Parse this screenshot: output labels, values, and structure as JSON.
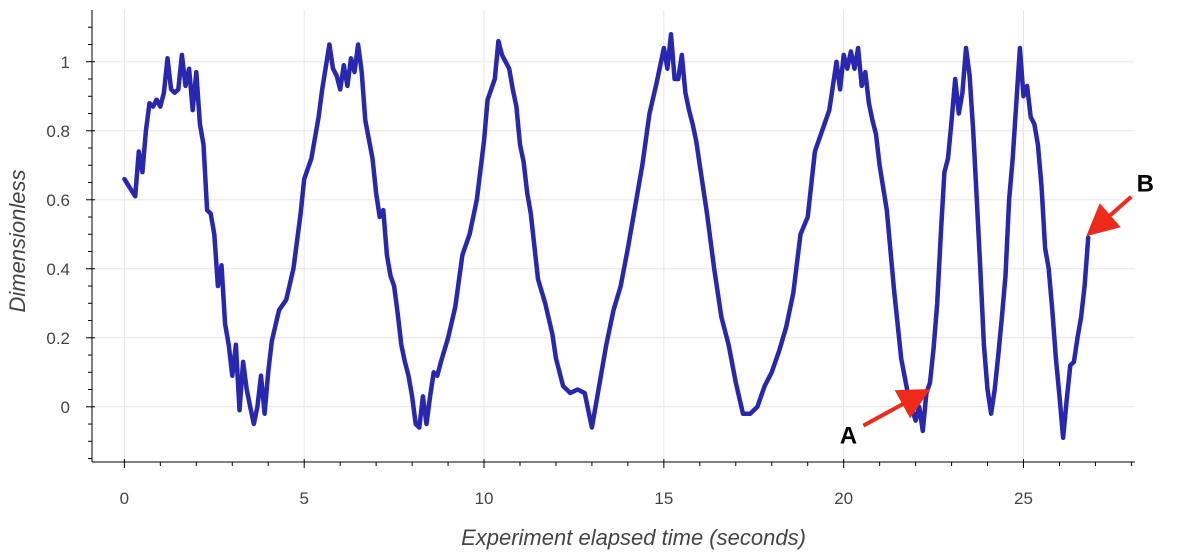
{
  "chart_data": {
    "type": "line",
    "title": "",
    "xlabel": "Experiment elapsed time (seconds)",
    "ylabel": "Dimensionless",
    "xlim": [
      -0.9,
      28.1
    ],
    "ylim": [
      -0.16,
      1.15
    ],
    "x_ticks": [
      0,
      5,
      10,
      15,
      20,
      25
    ],
    "x_tick_labels": [
      "0",
      "5",
      "10",
      "15",
      "20",
      "25"
    ],
    "y_ticks": [
      0,
      0.2,
      0.4,
      0.6,
      0.8,
      1
    ],
    "y_tick_labels": [
      "0",
      "0.2",
      "0.4",
      "0.6",
      "0.8",
      "1"
    ],
    "grid": true,
    "legend": "none",
    "colors": {
      "line": "#2727b0",
      "arrow": "#ee2a1b",
      "grid": "#e6e6e6",
      "axis": "#000000"
    },
    "series": [
      {
        "x": [
          0,
          0.3,
          0.4,
          0.5,
          0.6,
          0.7,
          0.8,
          0.9,
          1.0,
          1.1,
          1.2,
          1.3,
          1.4,
          1.5,
          1.6,
          1.7,
          1.8,
          1.9,
          2.0,
          2.1,
          2.2,
          2.3,
          2.4,
          2.5,
          2.6,
          2.7,
          2.8,
          2.9,
          3.0,
          3.1,
          3.2,
          3.3,
          3.4,
          3.5,
          3.6,
          3.7,
          3.8,
          3.9,
          4.0,
          4.1,
          4.3,
          4.5,
          4.7,
          4.9,
          5.0,
          5.2,
          5.4,
          5.5,
          5.7,
          5.8,
          5.9,
          6.0,
          6.1,
          6.2,
          6.3,
          6.4,
          6.5,
          6.6,
          6.7,
          6.9,
          7.0,
          7.1,
          7.2,
          7.3,
          7.4,
          7.5,
          7.6,
          7.7,
          7.8,
          7.9,
          8.0,
          8.1,
          8.2,
          8.3,
          8.4,
          8.5,
          8.6,
          8.7,
          8.8,
          9.0,
          9.2,
          9.4,
          9.6,
          9.8,
          10.0,
          10.1,
          10.2,
          10.3,
          10.4,
          10.5,
          10.6,
          10.7,
          10.8,
          10.9,
          11.0,
          11.1,
          11.2,
          11.3,
          11.5,
          11.7,
          11.9,
          12.0,
          12.2,
          12.4,
          12.6,
          12.8,
          13.0,
          13.2,
          13.4,
          13.6,
          13.8,
          14.0,
          14.2,
          14.4,
          14.6,
          14.8,
          15.0,
          15.1,
          15.2,
          15.3,
          15.4,
          15.5,
          15.6,
          15.7,
          15.8,
          15.9,
          16.0,
          16.2,
          16.4,
          16.6,
          16.8,
          17.0,
          17.2,
          17.4,
          17.6,
          17.8,
          18.0,
          18.2,
          18.4,
          18.6,
          18.8,
          19.0,
          19.2,
          19.4,
          19.6,
          19.8,
          19.9,
          20.0,
          20.1,
          20.2,
          20.3,
          20.4,
          20.5,
          20.6,
          20.7,
          20.8,
          20.9,
          21.0,
          21.2,
          21.4,
          21.6,
          21.8,
          22.0,
          22.1,
          22.2,
          22.3,
          22.4,
          22.5,
          22.6,
          22.7,
          22.8,
          22.9,
          23.0,
          23.1,
          23.2,
          23.3,
          23.4,
          23.5,
          23.6,
          23.7,
          23.8,
          23.9,
          24.0,
          24.1,
          24.2,
          24.3,
          24.4,
          24.5,
          24.6,
          24.7,
          24.8,
          24.9,
          25.0,
          25.1,
          25.2,
          25.3,
          25.4,
          25.5,
          25.6,
          25.7,
          25.8,
          25.9,
          26.0,
          26.1,
          26.2,
          26.3,
          26.4,
          26.5,
          26.6,
          26.7,
          26.8
        ],
        "y": [
          0.66,
          0.61,
          0.74,
          0.68,
          0.8,
          0.88,
          0.87,
          0.89,
          0.87,
          0.91,
          1.01,
          0.92,
          0.91,
          0.92,
          1.02,
          0.93,
          0.98,
          0.86,
          0.97,
          0.82,
          0.76,
          0.57,
          0.56,
          0.5,
          0.35,
          0.41,
          0.24,
          0.18,
          0.09,
          0.18,
          -0.01,
          0.13,
          0.05,
          0.0,
          -0.05,
          0.0,
          0.09,
          -0.02,
          0.1,
          0.19,
          0.28,
          0.31,
          0.4,
          0.56,
          0.66,
          0.72,
          0.84,
          0.92,
          1.05,
          0.98,
          0.96,
          0.92,
          0.99,
          0.93,
          1.01,
          0.97,
          1.05,
          0.97,
          0.83,
          0.72,
          0.62,
          0.55,
          0.57,
          0.44,
          0.38,
          0.35,
          0.27,
          0.18,
          0.13,
          0.09,
          0.03,
          -0.05,
          -0.06,
          0.03,
          -0.05,
          0.03,
          0.1,
          0.09,
          0.13,
          0.2,
          0.29,
          0.44,
          0.5,
          0.6,
          0.77,
          0.89,
          0.92,
          0.95,
          1.06,
          1.02,
          1.0,
          0.98,
          0.92,
          0.87,
          0.76,
          0.71,
          0.62,
          0.56,
          0.37,
          0.3,
          0.21,
          0.14,
          0.06,
          0.04,
          0.05,
          0.04,
          -0.06,
          0.06,
          0.18,
          0.28,
          0.35,
          0.46,
          0.58,
          0.7,
          0.85,
          0.94,
          1.04,
          0.98,
          1.08,
          0.95,
          0.95,
          1.02,
          0.91,
          0.86,
          0.82,
          0.77,
          0.7,
          0.56,
          0.4,
          0.26,
          0.18,
          0.07,
          -0.02,
          -0.02,
          0.0,
          0.06,
          0.1,
          0.16,
          0.23,
          0.33,
          0.5,
          0.55,
          0.74,
          0.8,
          0.86,
          1.0,
          0.92,
          1.02,
          0.98,
          1.03,
          0.98,
          1.04,
          0.93,
          0.97,
          0.88,
          0.83,
          0.79,
          0.7,
          0.57,
          0.34,
          0.14,
          0.03,
          -0.04,
          0.0,
          -0.07,
          0.04,
          0.07,
          0.17,
          0.3,
          0.5,
          0.68,
          0.72,
          0.83,
          0.95,
          0.85,
          0.91,
          1.04,
          0.96,
          0.8,
          0.6,
          0.4,
          0.18,
          0.05,
          -0.02,
          0.05,
          0.15,
          0.26,
          0.38,
          0.6,
          0.72,
          0.88,
          1.04,
          0.9,
          0.93,
          0.84,
          0.82,
          0.76,
          0.64,
          0.46,
          0.4,
          0.28,
          0.14,
          0.03,
          -0.09,
          0.02,
          0.12,
          0.13,
          0.2,
          0.26,
          0.35,
          0.49
        ]
      }
    ],
    "annotations": [
      {
        "text": "A",
        "x": 22.3,
        "y": 0.07
      },
      {
        "text": "B",
        "x": 26.8,
        "y": 0.49
      }
    ]
  }
}
